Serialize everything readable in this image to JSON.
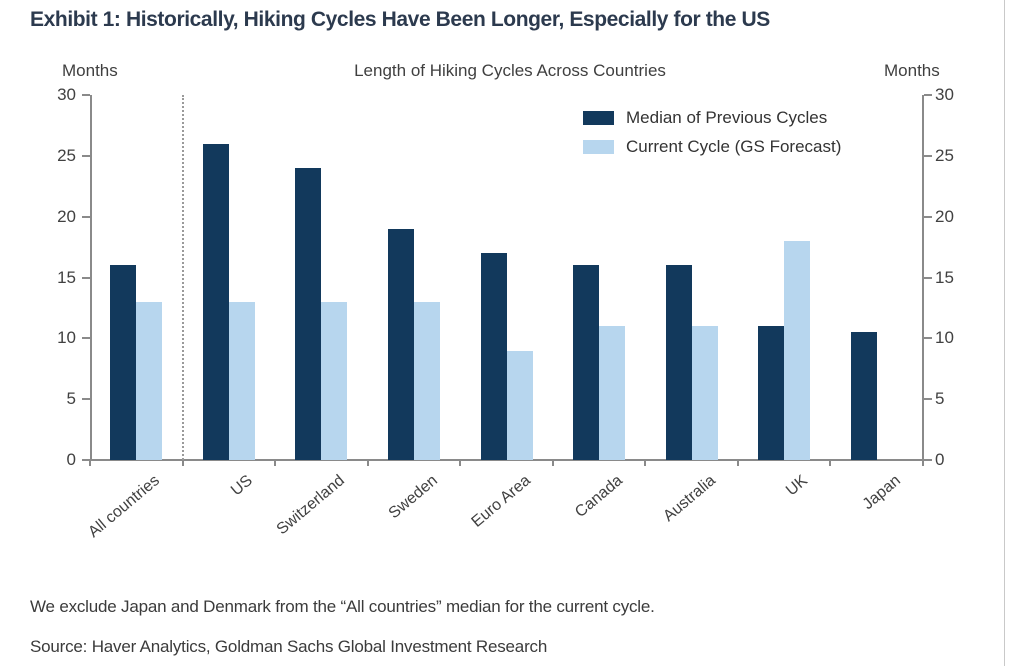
{
  "header": {
    "title": "Exhibit 1: Historically, Hiking Cycles Have Been Longer, Especially for the US"
  },
  "chart_data": {
    "type": "bar",
    "title": "Length of Hiking Cycles Across Countries",
    "ylabel_left": "Months",
    "ylabel_right": "Months",
    "ylim": [
      0,
      30
    ],
    "yticks": [
      0,
      5,
      10,
      15,
      20,
      25,
      30
    ],
    "grid": false,
    "legend_position": "top-right-inside",
    "categories": [
      "All countries",
      "US",
      "Switzerland",
      "Sweden",
      "Euro Area",
      "Canada",
      "Australia",
      "UK",
      "Japan"
    ],
    "series": [
      {
        "name": "Median of Previous Cycles",
        "color": "#12395C",
        "values": [
          16,
          26,
          24,
          19,
          17,
          16,
          16,
          11,
          10.5
        ]
      },
      {
        "name": "Current Cycle (GS Forecast)",
        "color": "#B7D6EE",
        "values": [
          13,
          13,
          13,
          13,
          9,
          11,
          11,
          18,
          null
        ]
      }
    ],
    "separator_after_category_index": 0
  },
  "footnote": "We exclude Japan and Denmark from the “All countries” median for the current cycle.",
  "source": "Source: Haver Analytics, Goldman Sachs Global Investment Research",
  "colors": {
    "median_bar": "#12395C",
    "current_bar": "#B7D6EE",
    "axis": "#8A8A8A",
    "title_text": "#2C3A4E",
    "tick_text": "#414141"
  }
}
